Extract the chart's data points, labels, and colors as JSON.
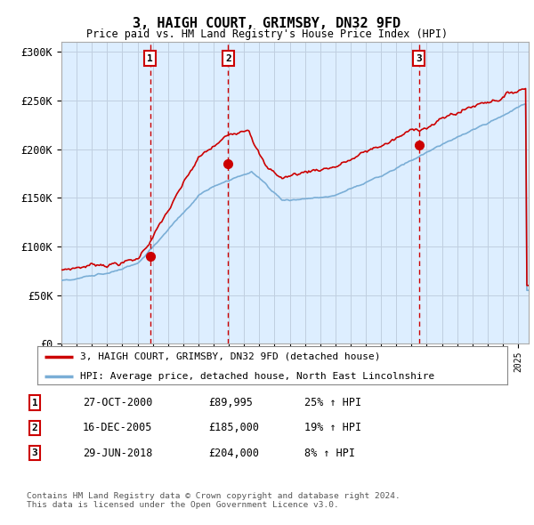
{
  "title": "3, HAIGH COURT, GRIMSBY, DN32 9FD",
  "subtitle": "Price paid vs. HM Land Registry's House Price Index (HPI)",
  "xlim_start": 1995.0,
  "xlim_end": 2025.7,
  "ylim": [
    0,
    310000
  ],
  "yticks": [
    0,
    50000,
    100000,
    150000,
    200000,
    250000,
    300000
  ],
  "ytick_labels": [
    "£0",
    "£50K",
    "£100K",
    "£150K",
    "£200K",
    "£250K",
    "£300K"
  ],
  "sale_dates": [
    2000.82,
    2005.96,
    2018.49
  ],
  "sale_prices": [
    89995,
    185000,
    204000
  ],
  "sale_labels": [
    "1",
    "2",
    "3"
  ],
  "red_line_color": "#cc0000",
  "blue_line_color": "#7aaed6",
  "dot_color": "#cc0000",
  "vline_color": "#cc0000",
  "shade_color": "#ddeeff",
  "grid_color": "#c0cfe0",
  "bg_color": "#ffffff",
  "legend_line1": "3, HAIGH COURT, GRIMSBY, DN32 9FD (detached house)",
  "legend_line2": "HPI: Average price, detached house, North East Lincolnshire",
  "table_rows": [
    [
      "1",
      "27-OCT-2000",
      "£89,995",
      "25% ↑ HPI"
    ],
    [
      "2",
      "16-DEC-2005",
      "£185,000",
      "19% ↑ HPI"
    ],
    [
      "3",
      "29-JUN-2018",
      "£204,000",
      "8% ↑ HPI"
    ]
  ],
  "footnote1": "Contains HM Land Registry data © Crown copyright and database right 2024.",
  "footnote2": "This data is licensed under the Open Government Licence v3.0."
}
